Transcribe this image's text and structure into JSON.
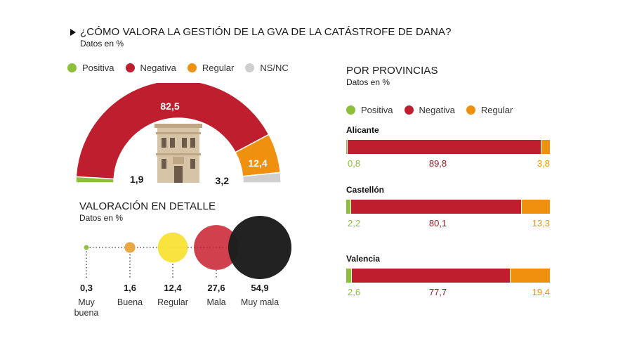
{
  "colors": {
    "positiva": "#8cbf3a",
    "negativa": "#be1e2d",
    "regular": "#f0900f",
    "nsnc": "#cfcfcf"
  },
  "header": {
    "title": "¿CÓMO VALORA LA GESTIÓN DE LA GVA DE LA CATÁSTROFE DE DANA?",
    "subtitle": "Datos en %"
  },
  "legend_main": [
    "Positiva",
    "Negativa",
    "Regular",
    "NS/NC"
  ],
  "detail": {
    "title": "VALORACIÓN EN DETALLE",
    "subtitle": "Datos en %"
  },
  "provinces": {
    "title": "POR PROVINCIAS",
    "subtitle": "Datos en %",
    "legend": [
      "Positiva",
      "Negativa",
      "Regular"
    ]
  },
  "chart_data": [
    {
      "type": "pie",
      "style": "semicircle donut",
      "title": "¿CÓMO VALORA LA GESTIÓN DE LA GVA DE LA CATÁSTROFE DE DANA?",
      "categories": [
        "Positiva",
        "Negativa",
        "Regular",
        "NS/NC"
      ],
      "values": [
        1.9,
        82.5,
        12.4,
        3.2
      ],
      "labels": [
        "1,9",
        "82,5",
        "12,4",
        "3,2"
      ]
    },
    {
      "type": "scatter",
      "style": "proportional bubbles",
      "title": "VALORACIÓN EN DETALLE",
      "categories": [
        "Muy buena",
        "Buena",
        "Regular",
        "Mala",
        "Muy mala"
      ],
      "category_lines": [
        [
          "Muy",
          "buena"
        ],
        [
          "Buena"
        ],
        [
          "Regular"
        ],
        [
          "Mala"
        ],
        [
          "Muy mala"
        ]
      ],
      "values": [
        0.3,
        1.6,
        12.4,
        27.6,
        54.9
      ],
      "labels": [
        "0,3",
        "1,6",
        "12,4",
        "27,6",
        "54,9"
      ],
      "colors": [
        "#8cbf3a",
        "#e8a33a",
        "#f9e234",
        "#c8202e",
        "#1e1e1e"
      ]
    },
    {
      "type": "bar",
      "style": "stacked horizontal 100%",
      "title": "POR PROVINCIAS",
      "categories": [
        "Alicante",
        "Castellón",
        "Valencia"
      ],
      "series": [
        {
          "name": "Positiva",
          "values": [
            0.8,
            2.2,
            2.6
          ],
          "labels": [
            "0,8",
            "2,2",
            "2,6"
          ]
        },
        {
          "name": "Negativa",
          "values": [
            89.8,
            80.1,
            77.7
          ],
          "labels": [
            "89,8",
            "80,1",
            "77,7"
          ]
        },
        {
          "name": "Regular",
          "values": [
            3.8,
            13.3,
            19.4
          ],
          "labels": [
            "3,8",
            "13,3",
            "19,4"
          ]
        }
      ]
    }
  ]
}
